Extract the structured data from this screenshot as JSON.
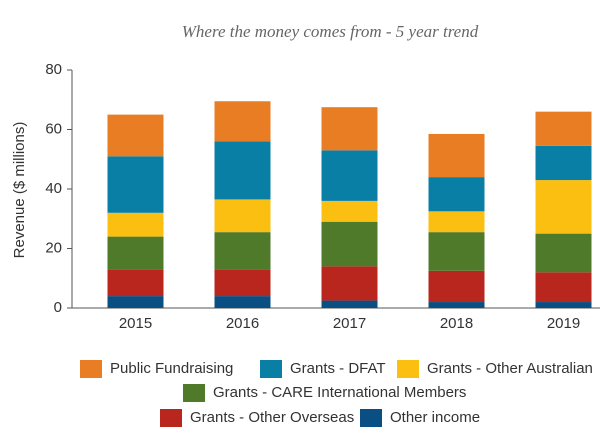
{
  "chart_data": {
    "type": "stacked_bar",
    "title": "Where the money comes from - 5 year trend",
    "y_label": "Revenue ($ millions)",
    "categories": [
      "2015",
      "2016",
      "2017",
      "2018",
      "2019"
    ],
    "series": [
      {
        "name": "Public Fundraising",
        "color": "#e87d24",
        "values": [
          14,
          13.5,
          14.5,
          14.5,
          11.5
        ]
      },
      {
        "name": "Grants - DFAT",
        "color": "#0a7fa5",
        "values": [
          19,
          19.5,
          17,
          11.5,
          11.5
        ]
      },
      {
        "name": "Grants - Other Australian",
        "color": "#fbbf12",
        "values": [
          8,
          11,
          7,
          7,
          18
        ]
      },
      {
        "name": "Grants - CARE International Members",
        "color": "#4f7a2a",
        "values": [
          11,
          12.5,
          15,
          13,
          13
        ]
      },
      {
        "name": "Grants - Other Overseas",
        "color": "#b8261e",
        "values": [
          9,
          9,
          11.5,
          10.5,
          10
        ]
      },
      {
        "name": "Other income",
        "color": "#0a4f84",
        "values": [
          4,
          4,
          2.5,
          2,
          2
        ]
      }
    ],
    "ylim": [
      0,
      80
    ],
    "yticks": [
      0,
      20,
      40,
      60,
      80
    ]
  }
}
